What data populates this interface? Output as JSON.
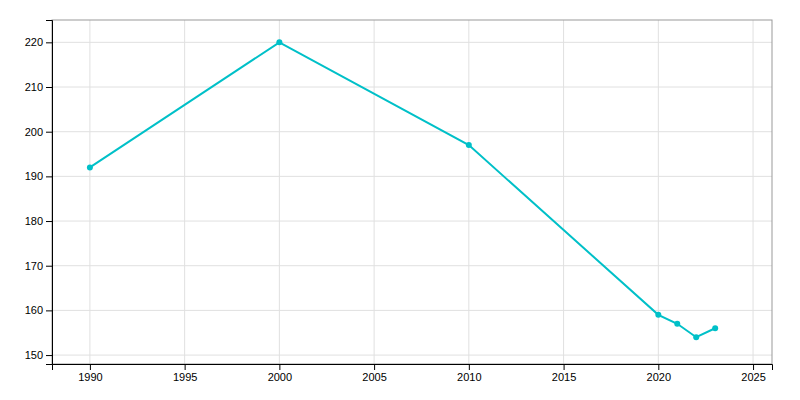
{
  "chart_data": {
    "type": "line",
    "x": [
      1990,
      2000,
      2010,
      2020,
      2021,
      2022,
      2023
    ],
    "values": [
      192,
      220,
      197,
      159,
      157,
      154,
      156
    ],
    "color": "#00c0c8",
    "marker": "circle",
    "xlim": [
      1988,
      2026
    ],
    "ylim": [
      148,
      225
    ],
    "xticks": [
      1990,
      1995,
      2000,
      2005,
      2010,
      2015,
      2020,
      2025
    ],
    "yticks": [
      150,
      160,
      170,
      180,
      190,
      200,
      210,
      220
    ],
    "grid": true
  }
}
